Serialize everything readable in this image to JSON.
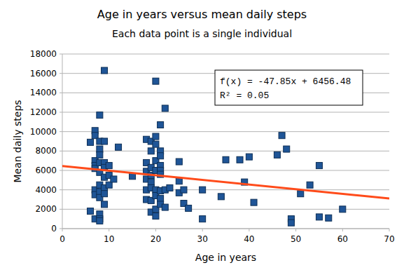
{
  "chart_data": {
    "type": "scatter",
    "title": "Age in years versus mean daily steps",
    "subtitle": "Each data point is a single individual",
    "x_label": "Age in years",
    "y_label": "Mean daily steps",
    "x": [
      6,
      6,
      7,
      7,
      7,
      7,
      7,
      7,
      7,
      7,
      8,
      8,
      8,
      8,
      8,
      8,
      8,
      8,
      8,
      8,
      8,
      8,
      9,
      9,
      9,
      9,
      9,
      9,
      9,
      9,
      10,
      10,
      10,
      11,
      12,
      15,
      18,
      18,
      18,
      18,
      18,
      18,
      19,
      19,
      19,
      19,
      19,
      19,
      19,
      19,
      20,
      20,
      20,
      20,
      20,
      20,
      20,
      20,
      20,
      21,
      21,
      21,
      21,
      21,
      21,
      21,
      21,
      21,
      22,
      22,
      22,
      23,
      25,
      25,
      25,
      26,
      26,
      27,
      30,
      30,
      34,
      35,
      38,
      39,
      40,
      41,
      46,
      47,
      48,
      49,
      49,
      51,
      53,
      55,
      55,
      57,
      60
    ],
    "values": [
      1800,
      8900,
      10100,
      9600,
      7000,
      6500,
      6200,
      4000,
      3500,
      1000,
      11700,
      9000,
      8200,
      7600,
      6800,
      5800,
      4500,
      3800,
      3200,
      1500,
      1000,
      800,
      16300,
      9000,
      6800,
      6300,
      5300,
      4200,
      3600,
      2500,
      6500,
      5500,
      4500,
      5100,
      8400,
      5400,
      9200,
      6800,
      5900,
      5100,
      4000,
      3000,
      9000,
      8000,
      6300,
      5500,
      4800,
      4200,
      2900,
      1700,
      15200,
      9500,
      8700,
      7000,
      6000,
      4000,
      3400,
      2000,
      1300,
      10700,
      8000,
      7500,
      6500,
      6000,
      5600,
      3900,
      3100,
      2500,
      12400,
      4000,
      2200,
      4200,
      6900,
      4900,
      3700,
      4000,
      2600,
      2100,
      4000,
      1000,
      3300,
      7100,
      7100,
      4800,
      7400,
      2700,
      7600,
      9600,
      8200,
      1000,
      600,
      3600,
      4500,
      6500,
      1200,
      1100,
      2000
    ],
    "color": "#1f5597",
    "marker": "square",
    "xlim": [
      0,
      70
    ],
    "xticks": [
      0,
      10,
      20,
      30,
      40,
      50,
      60,
      70
    ],
    "ylim": [
      0,
      18000
    ],
    "yticks": [
      0,
      2000,
      4000,
      6000,
      8000,
      10000,
      12000,
      14000,
      16000,
      18000
    ],
    "grid": true,
    "trendline": {
      "slope": -47.85,
      "intercept": 6456.48,
      "color": "#ff4b1a"
    },
    "annotations": [
      "f(x) = -47.85x + 6456.48",
      "R² = 0.05"
    ]
  }
}
